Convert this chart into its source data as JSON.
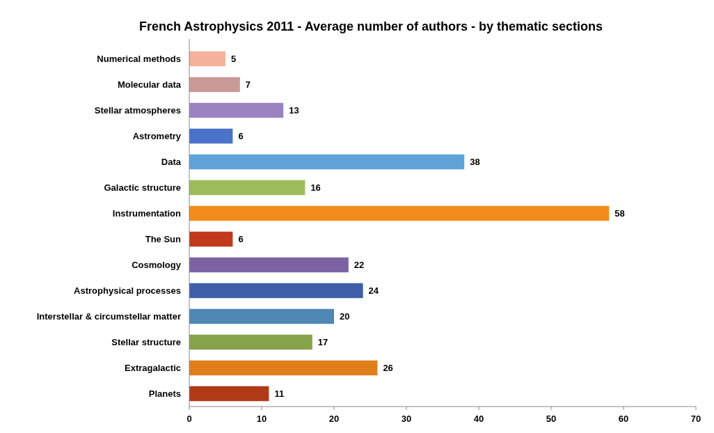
{
  "chart_data": {
    "type": "bar",
    "orientation": "horizontal",
    "title": "French Astrophysics 2011 - Average number of authors - by thematic sections",
    "categories": [
      "Numerical methods",
      "Molecular data",
      "Stellar atmospheres",
      "Astrometry",
      "Data",
      "Galactic structure",
      "Instrumentation",
      "The Sun",
      "Cosmology",
      "Astrophysical processes",
      "Interstellar & circumstellar matter",
      "Stellar structure",
      "Extragalactic",
      "Planets"
    ],
    "values": [
      5,
      7,
      13,
      6,
      38,
      16,
      58,
      6,
      22,
      24,
      20,
      17,
      26,
      11
    ],
    "colors": [
      "#f4b39a",
      "#c99a96",
      "#9a82c0",
      "#4a72c8",
      "#5fa3d9",
      "#9dbd5a",
      "#f28c1c",
      "#c0391b",
      "#7b63a3",
      "#3c5fa8",
      "#4f87b5",
      "#86a24a",
      "#e07f1a",
      "#b03a18"
    ],
    "xlim": [
      0,
      70
    ],
    "xticks": [
      0,
      10,
      20,
      30,
      40,
      50,
      60,
      70
    ],
    "data_labels": true
  }
}
